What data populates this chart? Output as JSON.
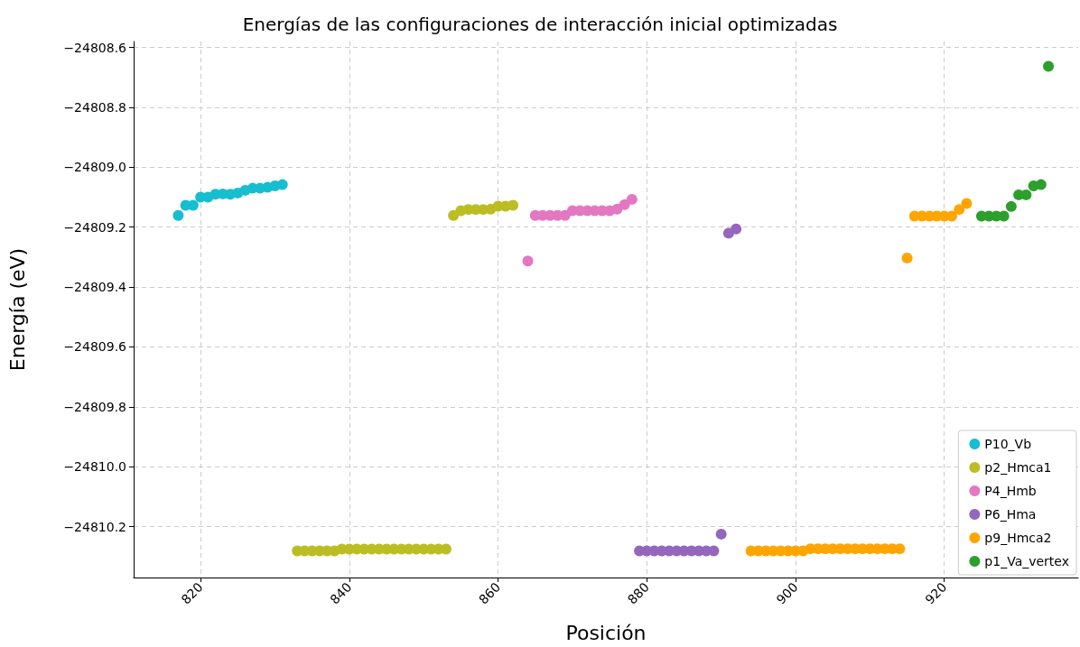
{
  "chart_data": {
    "type": "scatter",
    "title": "Energías de las configuraciones de interacción inicial optimizadas",
    "xlabel": "Posición",
    "ylabel": "Energía (eV)",
    "xlim": [
      811,
      938
    ],
    "xticks": [
      820,
      840,
      860,
      880,
      900,
      920
    ],
    "ylim": [
      -24810.37,
      -24808.58
    ],
    "yticks": [
      {
        "value": -24810.2,
        "label": "−24810.2"
      },
      {
        "value": -24810.0,
        "label": "−24810.0"
      },
      {
        "value": -24809.8,
        "label": "−24809.8"
      },
      {
        "value": -24809.6,
        "label": "−24809.6"
      },
      {
        "value": -24809.4,
        "label": "−24809.4"
      },
      {
        "value": -24809.2,
        "label": "−24809.2"
      },
      {
        "value": -24809.0,
        "label": "−24809.0"
      },
      {
        "value": -24808.8,
        "label": "−24808.8"
      },
      {
        "value": -24808.6,
        "label": "−24808.6"
      }
    ],
    "grid": true,
    "legend": "bottom right",
    "marker": "circle",
    "series": [
      {
        "name": "P10_Vb",
        "color": "#17becf",
        "x": [
          817,
          818,
          819,
          820,
          821,
          822,
          823,
          824,
          825,
          826,
          827,
          828,
          829,
          830,
          831
        ],
        "values": [
          -24809.161,
          -24809.127,
          -24809.127,
          -24809.1,
          -24809.1,
          -24809.09,
          -24809.089,
          -24809.09,
          -24809.086,
          -24809.077,
          -24809.07,
          -24809.07,
          -24809.067,
          -24809.062,
          -24809.058
        ]
      },
      {
        "name": "p2_Hmca1",
        "color": "#bcbd22",
        "x": [
          833,
          834,
          835,
          836,
          837,
          838,
          839,
          840,
          841,
          842,
          843,
          844,
          845,
          846,
          847,
          848,
          849,
          850,
          851,
          852,
          853,
          854,
          855,
          856,
          857,
          858,
          859,
          860,
          861,
          862
        ],
        "values": [
          -24810.281,
          -24810.281,
          -24810.281,
          -24810.281,
          -24810.281,
          -24810.281,
          -24810.275,
          -24810.275,
          -24810.275,
          -24810.275,
          -24810.275,
          -24810.275,
          -24810.275,
          -24810.275,
          -24810.275,
          -24810.275,
          -24810.275,
          -24810.275,
          -24810.275,
          -24810.275,
          -24810.275,
          -24809.161,
          -24809.145,
          -24809.141,
          -24809.141,
          -24809.141,
          -24809.14,
          -24809.13,
          -24809.13,
          -24809.127
        ]
      },
      {
        "name": "P4_Hmb",
        "color": "#e377c2",
        "x": [
          864,
          865,
          866,
          867,
          868,
          869,
          870,
          871,
          872,
          873,
          874,
          875,
          876,
          877,
          878
        ],
        "values": [
          -24809.313,
          -24809.161,
          -24809.161,
          -24809.161,
          -24809.161,
          -24809.161,
          -24809.145,
          -24809.145,
          -24809.145,
          -24809.145,
          -24809.145,
          -24809.145,
          -24809.14,
          -24809.125,
          -24809.107
        ]
      },
      {
        "name": "P6_Hma",
        "color": "#9467bd",
        "x": [
          879,
          880,
          881,
          882,
          883,
          884,
          885,
          886,
          887,
          888,
          889,
          890,
          891,
          892
        ],
        "values": [
          -24810.281,
          -24810.281,
          -24810.281,
          -24810.281,
          -24810.281,
          -24810.281,
          -24810.281,
          -24810.281,
          -24810.281,
          -24810.281,
          -24810.281,
          -24810.225,
          -24809.22,
          -24809.206
        ]
      },
      {
        "name": "p9_Hmca2",
        "color": "#ffa500",
        "x": [
          894,
          895,
          896,
          897,
          898,
          899,
          900,
          901,
          902,
          903,
          904,
          905,
          906,
          907,
          908,
          909,
          910,
          911,
          912,
          913,
          914,
          915,
          916,
          917,
          918,
          919,
          920,
          921,
          922,
          923
        ],
        "values": [
          -24810.281,
          -24810.281,
          -24810.281,
          -24810.281,
          -24810.281,
          -24810.281,
          -24810.281,
          -24810.281,
          -24810.274,
          -24810.274,
          -24810.274,
          -24810.274,
          -24810.274,
          -24810.274,
          -24810.274,
          -24810.274,
          -24810.274,
          -24810.274,
          -24810.274,
          -24810.274,
          -24810.274,
          -24809.303,
          -24809.163,
          -24809.163,
          -24809.163,
          -24809.163,
          -24809.163,
          -24809.163,
          -24809.141,
          -24809.121
        ]
      },
      {
        "name": "p1_Va_vertex",
        "color": "#2ca02c",
        "x": [
          925,
          926,
          927,
          928,
          929,
          930,
          931,
          932,
          933,
          934
        ],
        "values": [
          -24809.163,
          -24809.163,
          -24809.163,
          -24809.163,
          -24809.131,
          -24809.092,
          -24809.092,
          -24809.062,
          -24809.058,
          -24808.663
        ]
      }
    ]
  }
}
